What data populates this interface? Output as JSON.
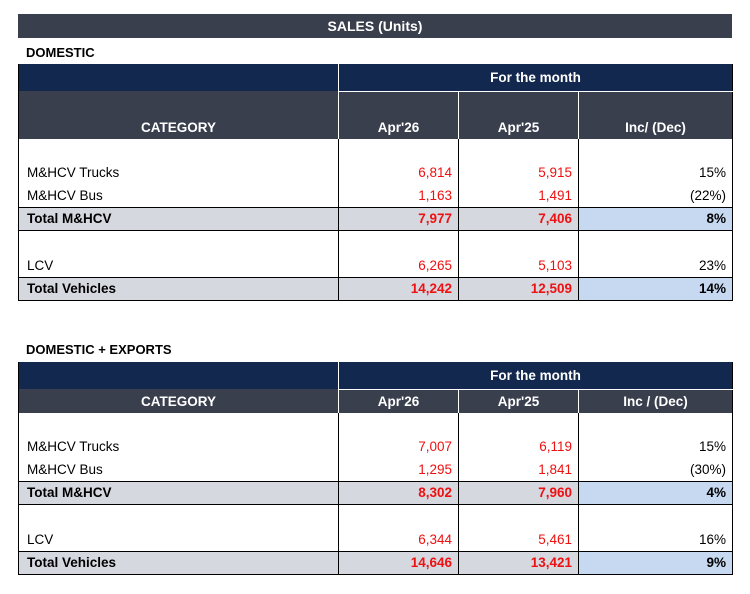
{
  "banner": "SALES (Units)",
  "sections": [
    {
      "title": "DOMESTIC",
      "period_header": "For the month",
      "columns": [
        "CATEGORY",
        "Apr'26",
        "Apr'25",
        "Inc/ (Dec)"
      ],
      "rows": [
        {
          "label": "M&HCV Trucks",
          "cur": "6,814",
          "prev": "5,915",
          "chg": "15%"
        },
        {
          "label": "M&HCV Bus",
          "cur": "1,163",
          "prev": "1,491",
          "chg": "(22%)"
        },
        {
          "label": "Total M&HCV",
          "cur": "7,977",
          "prev": "7,406",
          "chg": "8%"
        },
        {
          "label": "LCV",
          "cur": "6,265",
          "prev": "5,103",
          "chg": "23%"
        },
        {
          "label": "Total Vehicles",
          "cur": "14,242",
          "prev": "12,509",
          "chg": "14%"
        }
      ]
    },
    {
      "title": "DOMESTIC + EXPORTS",
      "period_header": "For the month",
      "columns": [
        "CATEGORY",
        "Apr'26",
        "Apr'25",
        "Inc / (Dec)"
      ],
      "rows": [
        {
          "label": "M&HCV Trucks",
          "cur": "7,007",
          "prev": "6,119",
          "chg": "15%"
        },
        {
          "label": "M&HCV Bus",
          "cur": "1,295",
          "prev": "1,841",
          "chg": "(30%)"
        },
        {
          "label": "Total M&HCV",
          "cur": "8,302",
          "prev": "7,960",
          "chg": "4%"
        },
        {
          "label": "LCV",
          "cur": "6,344",
          "prev": "5,461",
          "chg": "16%"
        },
        {
          "label": "Total Vehicles",
          "cur": "14,646",
          "prev": "13,421",
          "chg": "9%"
        }
      ]
    }
  ],
  "colors": {
    "banner_bg": "#3a3f4e",
    "period_bg": "#13284f",
    "value_text": "#ee1111",
    "total_row_bg": "#d6d8e0",
    "total_change_bg": "#c6d9f1"
  }
}
